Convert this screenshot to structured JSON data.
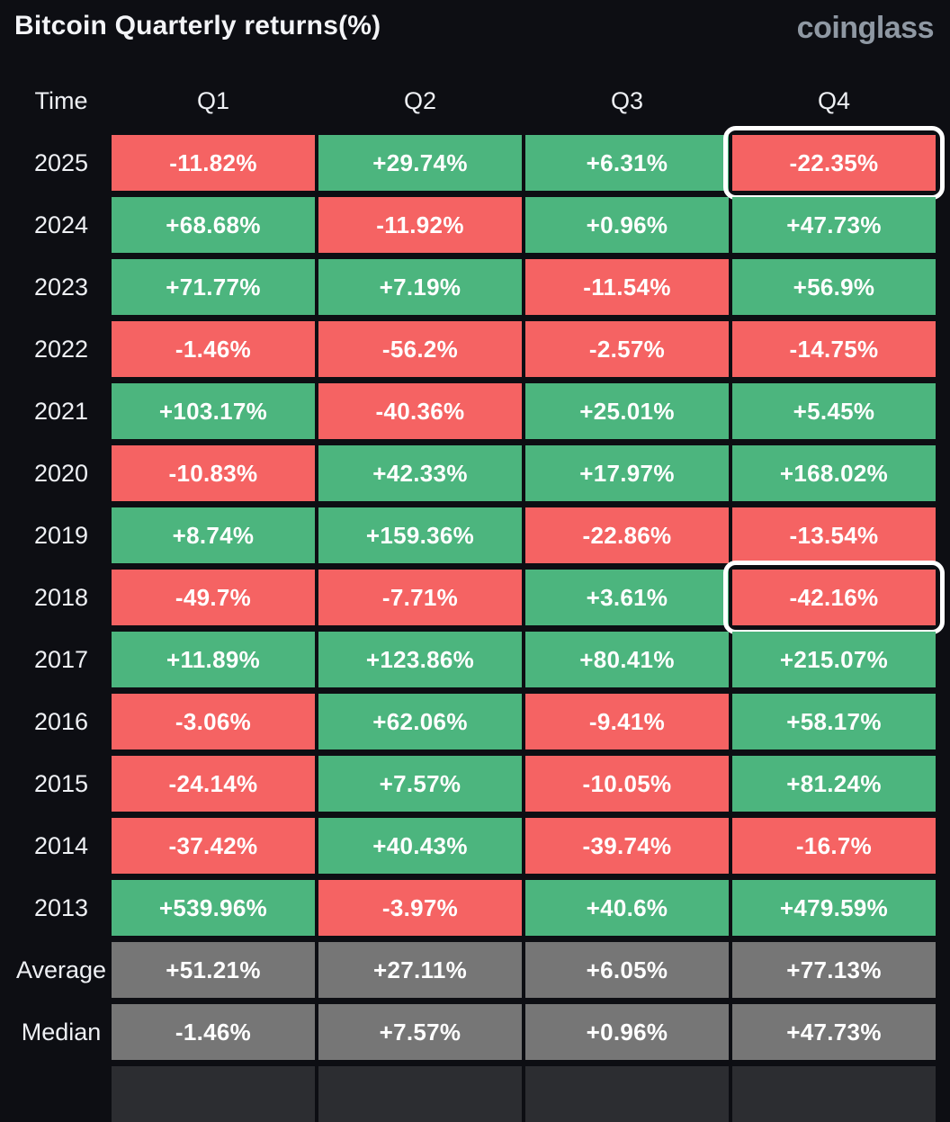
{
  "header": {
    "title": "Bitcoin Quarterly returns(%)",
    "logo": "coinglass"
  },
  "chart_data": {
    "type": "heatmap",
    "title": "Bitcoin Quarterly returns(%)",
    "columns": [
      "Time",
      "Q1",
      "Q2",
      "Q3",
      "Q4"
    ],
    "rows": [
      {
        "label": "2025",
        "type": "year",
        "values": [
          "-11.82%",
          "+29.74%",
          "+6.31%",
          "-22.35%"
        ]
      },
      {
        "label": "2024",
        "type": "year",
        "values": [
          "+68.68%",
          "-11.92%",
          "+0.96%",
          "+47.73%"
        ]
      },
      {
        "label": "2023",
        "type": "year",
        "values": [
          "+71.77%",
          "+7.19%",
          "-11.54%",
          "+56.9%"
        ]
      },
      {
        "label": "2022",
        "type": "year",
        "values": [
          "-1.46%",
          "-56.2%",
          "-2.57%",
          "-14.75%"
        ]
      },
      {
        "label": "2021",
        "type": "year",
        "values": [
          "+103.17%",
          "-40.36%",
          "+25.01%",
          "+5.45%"
        ]
      },
      {
        "label": "2020",
        "type": "year",
        "values": [
          "-10.83%",
          "+42.33%",
          "+17.97%",
          "+168.02%"
        ]
      },
      {
        "label": "2019",
        "type": "year",
        "values": [
          "+8.74%",
          "+159.36%",
          "-22.86%",
          "-13.54%"
        ]
      },
      {
        "label": "2018",
        "type": "year",
        "values": [
          "-49.7%",
          "-7.71%",
          "+3.61%",
          "-42.16%"
        ]
      },
      {
        "label": "2017",
        "type": "year",
        "values": [
          "+11.89%",
          "+123.86%",
          "+80.41%",
          "+215.07%"
        ]
      },
      {
        "label": "2016",
        "type": "year",
        "values": [
          "-3.06%",
          "+62.06%",
          "-9.41%",
          "+58.17%"
        ]
      },
      {
        "label": "2015",
        "type": "year",
        "values": [
          "-24.14%",
          "+7.57%",
          "-10.05%",
          "+81.24%"
        ]
      },
      {
        "label": "2014",
        "type": "year",
        "values": [
          "-37.42%",
          "+40.43%",
          "-39.74%",
          "-16.7%"
        ]
      },
      {
        "label": "2013",
        "type": "year",
        "values": [
          "+539.96%",
          "-3.97%",
          "+40.6%",
          "+479.59%"
        ]
      },
      {
        "label": "Average",
        "type": "stat",
        "values": [
          "+51.21%",
          "+27.11%",
          "+6.05%",
          "+77.13%"
        ]
      },
      {
        "label": "Median",
        "type": "stat",
        "values": [
          "-1.46%",
          "+7.57%",
          "+0.96%",
          "+47.73%"
        ]
      }
    ],
    "highlights": [
      {
        "row": "2025",
        "col": "Q4"
      },
      {
        "row": "2018",
        "col": "Q4"
      }
    ],
    "cutoff_row": true,
    "colors": {
      "positive": "#4cb57e",
      "negative": "#f56363",
      "stat": "#767676",
      "background": "#0d0e13"
    }
  }
}
